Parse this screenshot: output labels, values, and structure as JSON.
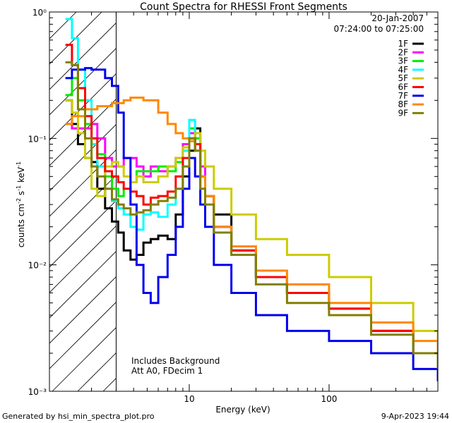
{
  "chart_data": {
    "type": "line",
    "title": "Count Spectra for RHESSI Front Segments",
    "xlabel": "Energy (keV)",
    "ylabel_html": "counts cm⁻² s⁻¹ keV⁻¹",
    "ylabel_parts": [
      "counts cm",
      "-2",
      " s",
      "-1",
      " keV",
      "-1"
    ],
    "x_scale": "log",
    "y_scale": "log",
    "xlim": [
      1,
      600
    ],
    "ylim": [
      0.001,
      1
    ],
    "x_ticks": [
      {
        "value": 10,
        "label": "10"
      },
      {
        "value": 100,
        "label": "100"
      }
    ],
    "y_ticks": [
      {
        "value": 1,
        "label": "10⁰"
      },
      {
        "value": 0.1,
        "label": "10⁻¹"
      },
      {
        "value": 0.01,
        "label": "10⁻²"
      },
      {
        "value": 0.001,
        "label": "10⁻³"
      }
    ],
    "date": "20-Jan-2007",
    "time_range": "07:24:00 to 07:25:00",
    "shaded_region_max_energy": 3,
    "annotations": [
      "Includes Background",
      "Att A0, FDecim 1"
    ],
    "series": [
      {
        "name": "1F",
        "color": "#000000",
        "points": [
          [
            1.3,
            0.2
          ],
          [
            1.45,
            0.13
          ],
          [
            1.6,
            0.09
          ],
          [
            1.8,
            0.07
          ],
          [
            2.0,
            0.065
          ],
          [
            2.2,
            0.04
          ],
          [
            2.5,
            0.028
          ],
          [
            2.8,
            0.022
          ],
          [
            3.1,
            0.018
          ],
          [
            3.4,
            0.013
          ],
          [
            3.8,
            0.011
          ],
          [
            4.2,
            0.012
          ],
          [
            4.7,
            0.015
          ],
          [
            5.3,
            0.016
          ],
          [
            6,
            0.017
          ],
          [
            7,
            0.016
          ],
          [
            8,
            0.025
          ],
          [
            9,
            0.05
          ],
          [
            10,
            0.08
          ],
          [
            11,
            0.12
          ],
          [
            12,
            0.05
          ],
          [
            13,
            0.035
          ],
          [
            15,
            0.025
          ],
          [
            20,
            0.013
          ],
          [
            30,
            0.008
          ],
          [
            50,
            0.006
          ],
          [
            100,
            0.0045
          ],
          [
            200,
            0.003
          ],
          [
            400,
            0.002
          ],
          [
            600,
            0.0015
          ]
        ]
      },
      {
        "name": "2F",
        "color": "#ff00ff",
        "points": [
          [
            1.3,
            0.13
          ],
          [
            1.45,
            0.12
          ],
          [
            1.6,
            0.12
          ],
          [
            1.8,
            0.12
          ],
          [
            2.0,
            0.13
          ],
          [
            2.2,
            0.1
          ],
          [
            2.5,
            0.07
          ],
          [
            2.8,
            0.06
          ],
          [
            3.1,
            0.06
          ],
          [
            3.4,
            0.07
          ],
          [
            3.8,
            0.07
          ],
          [
            4.2,
            0.06
          ],
          [
            4.7,
            0.05
          ],
          [
            5.3,
            0.06
          ],
          [
            6,
            0.055
          ],
          [
            7,
            0.06
          ],
          [
            8,
            0.07
          ],
          [
            9,
            0.09
          ],
          [
            10,
            0.11
          ],
          [
            11,
            0.1
          ],
          [
            12,
            0.06
          ],
          [
            13,
            0.035
          ],
          [
            15,
            0.02
          ],
          [
            20,
            0.013
          ],
          [
            30,
            0.008
          ],
          [
            50,
            0.006
          ],
          [
            100,
            0.0045
          ],
          [
            200,
            0.003
          ],
          [
            400,
            0.002
          ],
          [
            600,
            0.0015
          ]
        ]
      },
      {
        "name": "3F",
        "color": "#00ee00",
        "points": [
          [
            1.3,
            0.22
          ],
          [
            1.45,
            0.3
          ],
          [
            1.6,
            0.2
          ],
          [
            1.8,
            0.13
          ],
          [
            2.0,
            0.1
          ],
          [
            2.2,
            0.075
          ],
          [
            2.5,
            0.05
          ],
          [
            2.8,
            0.04
          ],
          [
            3.1,
            0.035
          ],
          [
            3.4,
            0.04
          ],
          [
            3.8,
            0.045
          ],
          [
            4.2,
            0.055
          ],
          [
            4.7,
            0.055
          ],
          [
            5.3,
            0.055
          ],
          [
            6,
            0.06
          ],
          [
            7,
            0.055
          ],
          [
            8,
            0.065
          ],
          [
            9,
            0.08
          ],
          [
            10,
            0.12
          ],
          [
            11,
            0.1
          ],
          [
            12,
            0.05
          ],
          [
            13,
            0.035
          ],
          [
            15,
            0.02
          ],
          [
            20,
            0.013
          ],
          [
            30,
            0.008
          ],
          [
            50,
            0.006
          ],
          [
            100,
            0.0045
          ],
          [
            200,
            0.003
          ],
          [
            400,
            0.002
          ],
          [
            600,
            0.0015
          ]
        ]
      },
      {
        "name": "4F",
        "color": "#00ffff",
        "points": [
          [
            1.3,
            0.88
          ],
          [
            1.45,
            0.62
          ],
          [
            1.6,
            0.35
          ],
          [
            1.8,
            0.2
          ],
          [
            2.0,
            0.09
          ],
          [
            2.2,
            0.06
          ],
          [
            2.5,
            0.04
          ],
          [
            2.8,
            0.032
          ],
          [
            3.1,
            0.028
          ],
          [
            3.4,
            0.025
          ],
          [
            3.8,
            0.02
          ],
          [
            4.2,
            0.019
          ],
          [
            4.7,
            0.025
          ],
          [
            5.3,
            0.026
          ],
          [
            6,
            0.024
          ],
          [
            7,
            0.03
          ],
          [
            8,
            0.04
          ],
          [
            9,
            0.08
          ],
          [
            10,
            0.14
          ],
          [
            11,
            0.09
          ],
          [
            12,
            0.05
          ],
          [
            13,
            0.035
          ],
          [
            15,
            0.02
          ],
          [
            20,
            0.013
          ],
          [
            30,
            0.008
          ],
          [
            50,
            0.006
          ],
          [
            100,
            0.0045
          ],
          [
            200,
            0.003
          ],
          [
            400,
            0.002
          ],
          [
            600,
            0.0015
          ]
        ]
      },
      {
        "name": "5F",
        "color": "#cccc00",
        "points": [
          [
            1.3,
            0.2
          ],
          [
            1.45,
            0.16
          ],
          [
            1.6,
            0.11
          ],
          [
            1.8,
            0.07
          ],
          [
            2.0,
            0.04
          ],
          [
            2.2,
            0.035
          ],
          [
            2.5,
            0.06
          ],
          [
            2.8,
            0.065
          ],
          [
            3.1,
            0.06
          ],
          [
            3.4,
            0.05
          ],
          [
            3.8,
            0.045
          ],
          [
            4.2,
            0.05
          ],
          [
            4.7,
            0.045
          ],
          [
            5.3,
            0.045
          ],
          [
            6,
            0.05
          ],
          [
            7,
            0.06
          ],
          [
            8,
            0.07
          ],
          [
            9,
            0.085
          ],
          [
            10,
            0.1
          ],
          [
            11,
            0.11
          ],
          [
            12,
            0.08
          ],
          [
            13,
            0.06
          ],
          [
            15,
            0.04
          ],
          [
            20,
            0.025
          ],
          [
            30,
            0.016
          ],
          [
            50,
            0.012
          ],
          [
            100,
            0.008
          ],
          [
            200,
            0.005
          ],
          [
            400,
            0.003
          ],
          [
            600,
            0.002
          ]
        ]
      },
      {
        "name": "6F",
        "color": "#ff0000",
        "points": [
          [
            1.3,
            0.55
          ],
          [
            1.45,
            0.38
          ],
          [
            1.6,
            0.25
          ],
          [
            1.8,
            0.15
          ],
          [
            2.0,
            0.1
          ],
          [
            2.2,
            0.07
          ],
          [
            2.5,
            0.055
          ],
          [
            2.8,
            0.05
          ],
          [
            3.1,
            0.045
          ],
          [
            3.4,
            0.04
          ],
          [
            3.8,
            0.038
          ],
          [
            4.2,
            0.035
          ],
          [
            4.7,
            0.03
          ],
          [
            5.3,
            0.034
          ],
          [
            6,
            0.035
          ],
          [
            7,
            0.038
          ],
          [
            8,
            0.05
          ],
          [
            9,
            0.07
          ],
          [
            10,
            0.1
          ],
          [
            11,
            0.09
          ],
          [
            12,
            0.05
          ],
          [
            13,
            0.035
          ],
          [
            15,
            0.02
          ],
          [
            20,
            0.013
          ],
          [
            30,
            0.008
          ],
          [
            50,
            0.006
          ],
          [
            100,
            0.0045
          ],
          [
            200,
            0.003
          ],
          [
            400,
            0.002
          ],
          [
            600,
            0.0015
          ]
        ]
      },
      {
        "name": "7F",
        "color": "#0000ee",
        "points": [
          [
            1.3,
            0.3
          ],
          [
            1.45,
            0.35
          ],
          [
            1.6,
            0.35
          ],
          [
            1.8,
            0.36
          ],
          [
            2.0,
            0.35
          ],
          [
            2.2,
            0.35
          ],
          [
            2.5,
            0.3
          ],
          [
            2.8,
            0.26
          ],
          [
            3.1,
            0.16
          ],
          [
            3.4,
            0.07
          ],
          [
            3.8,
            0.03
          ],
          [
            4.2,
            0.01
          ],
          [
            4.7,
            0.006
          ],
          [
            5.3,
            0.005
          ],
          [
            6,
            0.008
          ],
          [
            7,
            0.012
          ],
          [
            8,
            0.02
          ],
          [
            9,
            0.04
          ],
          [
            10,
            0.07
          ],
          [
            11,
            0.05
          ],
          [
            12,
            0.03
          ],
          [
            13,
            0.02
          ],
          [
            15,
            0.01
          ],
          [
            20,
            0.006
          ],
          [
            30,
            0.004
          ],
          [
            50,
            0.003
          ],
          [
            100,
            0.0025
          ],
          [
            200,
            0.002
          ],
          [
            400,
            0.0015
          ],
          [
            600,
            0.0012
          ]
        ]
      },
      {
        "name": "8F",
        "color": "#ff8800",
        "points": [
          [
            1.3,
            0.13
          ],
          [
            1.45,
            0.15
          ],
          [
            1.6,
            0.15
          ],
          [
            1.8,
            0.17
          ],
          [
            2.0,
            0.17
          ],
          [
            2.2,
            0.18
          ],
          [
            2.5,
            0.18
          ],
          [
            2.8,
            0.19
          ],
          [
            3.1,
            0.19
          ],
          [
            3.4,
            0.2
          ],
          [
            3.8,
            0.21
          ],
          [
            4.2,
            0.21
          ],
          [
            4.7,
            0.2
          ],
          [
            5.3,
            0.2
          ],
          [
            6,
            0.16
          ],
          [
            7,
            0.13
          ],
          [
            8,
            0.11
          ],
          [
            9,
            0.1
          ],
          [
            10,
            0.095
          ],
          [
            11,
            0.08
          ],
          [
            12,
            0.05
          ],
          [
            13,
            0.035
          ],
          [
            15,
            0.02
          ],
          [
            20,
            0.014
          ],
          [
            30,
            0.009
          ],
          [
            50,
            0.007
          ],
          [
            100,
            0.005
          ],
          [
            200,
            0.0035
          ],
          [
            400,
            0.0025
          ],
          [
            600,
            0.002
          ]
        ]
      },
      {
        "name": "9F",
        "color": "#808000",
        "points": [
          [
            1.3,
            0.4
          ],
          [
            1.45,
            0.38
          ],
          [
            1.6,
            0.17
          ],
          [
            1.8,
            0.1
          ],
          [
            2.0,
            0.06
          ],
          [
            2.2,
            0.05
          ],
          [
            2.5,
            0.04
          ],
          [
            2.8,
            0.033
          ],
          [
            3.1,
            0.03
          ],
          [
            3.4,
            0.028
          ],
          [
            3.8,
            0.025
          ],
          [
            4.2,
            0.026
          ],
          [
            4.7,
            0.027
          ],
          [
            5.3,
            0.03
          ],
          [
            6,
            0.032
          ],
          [
            7,
            0.034
          ],
          [
            8,
            0.04
          ],
          [
            9,
            0.06
          ],
          [
            10,
            0.1
          ],
          [
            11,
            0.08
          ],
          [
            12,
            0.04
          ],
          [
            13,
            0.03
          ],
          [
            15,
            0.018
          ],
          [
            20,
            0.012
          ],
          [
            30,
            0.007
          ],
          [
            50,
            0.005
          ],
          [
            100,
            0.004
          ],
          [
            200,
            0.0028
          ],
          [
            400,
            0.002
          ],
          [
            600,
            0.0015
          ]
        ]
      }
    ]
  },
  "footer": {
    "generated_by": "Generated by hsi_min_spectra_plot.pro",
    "timestamp": "9-Apr-2023 19:44"
  }
}
